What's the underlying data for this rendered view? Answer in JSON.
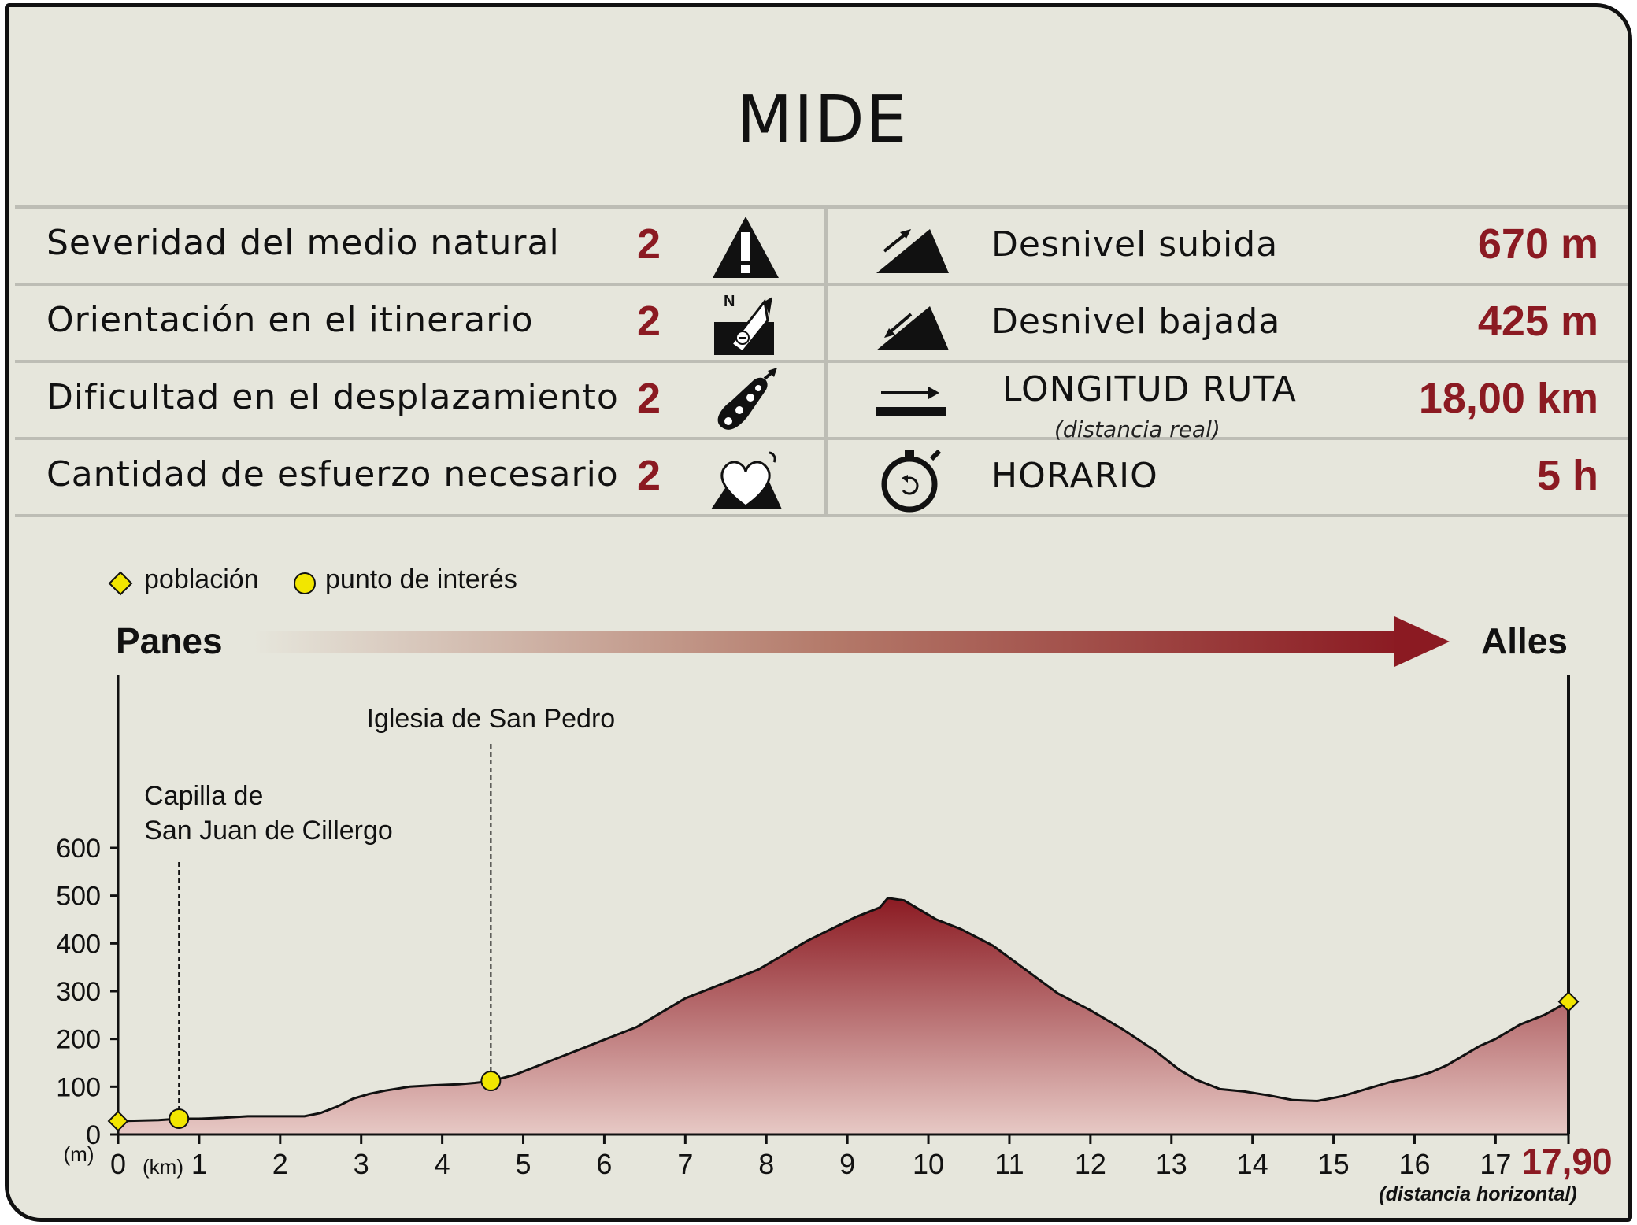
{
  "title": "MIDE",
  "left_rows": [
    {
      "label": "Severidad del medio natural",
      "value": "2",
      "icon": "warning-mountain-icon"
    },
    {
      "label": "Orientación en el itinerario",
      "value": "2",
      "icon": "compass-signpost-icon"
    },
    {
      "label": "Dificultad en el desplazamiento",
      "value": "2",
      "icon": "footprint-icon"
    },
    {
      "label": "Cantidad de esfuerzo necesario",
      "value": "2",
      "icon": "heart-mountain-icon"
    }
  ],
  "right_rows": [
    {
      "label": "Desnivel subida",
      "value": "670 m",
      "icon": "ascent-slope-icon"
    },
    {
      "label": "Desnivel bajada",
      "value": "425 m",
      "icon": "descent-slope-icon"
    },
    {
      "label": "LONGITUD RUTA",
      "sublabel": "(distancia real)",
      "value": "18,00 km",
      "icon": "distance-arrow-icon"
    },
    {
      "label": "HORARIO",
      "value": "5 h",
      "icon": "stopwatch-icon"
    }
  ],
  "legend": {
    "town": "población",
    "poi": "punto de interés"
  },
  "colors": {
    "accent": "#8b1a22",
    "marker": "#f2e600",
    "background": "#e6e6dc"
  },
  "chart_data": {
    "type": "area",
    "start_label": "Panes",
    "end_label": "Alles",
    "x_unit": "(km)",
    "y_unit": "(m)",
    "end_distance": "17,90",
    "end_distance_note": "(distancia horizontal)",
    "xlim": [
      0,
      17.9
    ],
    "ylim": [
      0,
      600
    ],
    "x_ticks": [
      0,
      1,
      2,
      3,
      4,
      5,
      6,
      7,
      8,
      9,
      10,
      11,
      12,
      13,
      14,
      15,
      16,
      17
    ],
    "y_ticks": [
      0,
      100,
      200,
      300,
      400,
      500,
      600
    ],
    "x": [
      0,
      0.5,
      0.75,
      1.0,
      1.3,
      1.6,
      2.0,
      2.3,
      2.5,
      2.7,
      2.9,
      3.1,
      3.3,
      3.6,
      3.9,
      4.2,
      4.4,
      4.6,
      4.9,
      5.2,
      5.5,
      5.8,
      6.1,
      6.4,
      6.7,
      7.0,
      7.3,
      7.6,
      7.9,
      8.2,
      8.5,
      8.8,
      9.1,
      9.4,
      9.5,
      9.7,
      9.9,
      10.1,
      10.4,
      10.8,
      11.2,
      11.6,
      12.0,
      12.4,
      12.8,
      13.1,
      13.3,
      13.6,
      13.9,
      14.2,
      14.5,
      14.8,
      15.1,
      15.4,
      15.7,
      16.0,
      16.2,
      16.4,
      16.6,
      16.8,
      17.0,
      17.3,
      17.6,
      17.9
    ],
    "y": [
      28,
      30,
      33,
      33,
      35,
      38,
      38,
      38,
      45,
      58,
      75,
      85,
      92,
      100,
      103,
      105,
      108,
      112,
      125,
      145,
      165,
      185,
      205,
      225,
      255,
      285,
      305,
      325,
      345,
      375,
      405,
      430,
      455,
      475,
      495,
      490,
      470,
      450,
      430,
      395,
      345,
      295,
      260,
      220,
      175,
      135,
      115,
      95,
      90,
      82,
      72,
      70,
      80,
      95,
      110,
      120,
      130,
      145,
      165,
      185,
      200,
      230,
      250,
      278
    ],
    "points": [
      {
        "type": "town",
        "x": 0,
        "y": 28
      },
      {
        "type": "poi",
        "x": 0.75,
        "y": 33,
        "label_lines": [
          "Capilla de",
          "San Juan de Cillergo"
        ]
      },
      {
        "type": "poi",
        "x": 4.6,
        "y": 112,
        "label_lines": [
          "Iglesia de San Pedro"
        ]
      },
      {
        "type": "town",
        "x": 17.9,
        "y": 278
      }
    ]
  }
}
